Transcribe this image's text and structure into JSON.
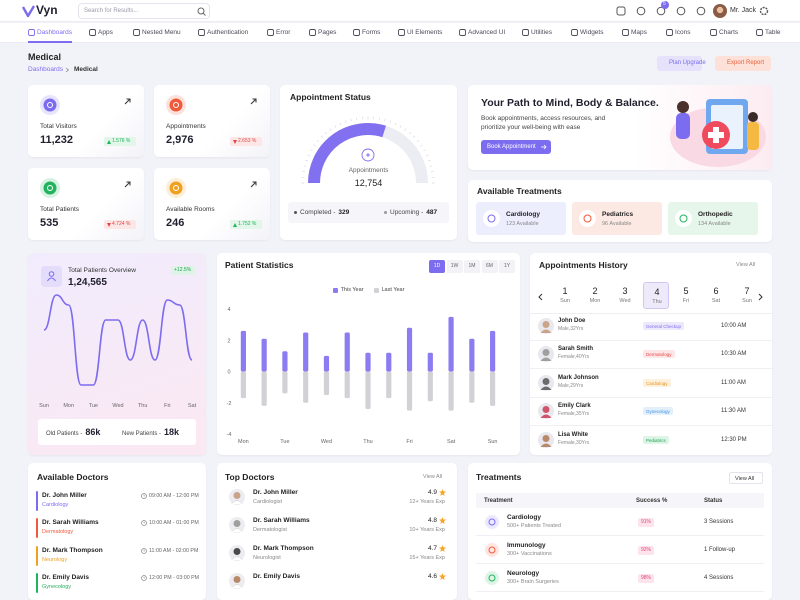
{
  "header": {
    "logo": "Vyn",
    "search_placeholder": "Search for Results...",
    "cart_badge": "5",
    "user": "Mr. Jack"
  },
  "nav": [
    "Dashboards",
    "Apps",
    "Nested Menu",
    "Authentication",
    "Error",
    "Pages",
    "Forms",
    "UI Elements",
    "Advanced UI",
    "Utilities",
    "Widgets",
    "Maps",
    "Icons",
    "Charts",
    "Table"
  ],
  "page": {
    "title": "Medical",
    "breadcrumb": [
      "Dashboards",
      "Medical"
    ],
    "actions": [
      "Plan Upgrade",
      "Export Report"
    ]
  },
  "stats": [
    {
      "label": "Total Visitors",
      "value": "11,232",
      "change": "1.576 %"
    },
    {
      "label": "Appointments",
      "value": "2,976",
      "change": "2.653 %"
    },
    {
      "label": "Total Patients",
      "value": "535",
      "change": "4.724 %"
    },
    {
      "label": "Available Rooms",
      "value": "246",
      "change": "1.752 %"
    }
  ],
  "appointment_status": {
    "title": "Appointment Status",
    "center_label": "Appointments",
    "center_value": "12,754",
    "legend": [
      {
        "label": "Completed -",
        "value": 329
      },
      {
        "label": "Upcoming -",
        "value": 487
      }
    ]
  },
  "banner": {
    "title": "Your Path to Mind, Body & Balance.",
    "text": "Book appointments, access resources, and prioritize your well-being with ease",
    "button": "Book Appointment"
  },
  "available_treatments": {
    "title": "Available Treatments",
    "items": [
      {
        "name": "Cardiology",
        "count": "123 Available"
      },
      {
        "name": "Pediatrics",
        "count": "96 Available"
      },
      {
        "name": "Orthopedic",
        "count": "134 Available"
      }
    ]
  },
  "chart_data": [
    {
      "type": "line",
      "title": "Total Patients Overview",
      "value": "1,24,565",
      "change": "+12.5%",
      "x": [
        0,
        0.5,
        1,
        1.5,
        2,
        2.5,
        3,
        3.5,
        4,
        4.5,
        5,
        5.5,
        6
      ],
      "values": [
        60,
        95,
        85,
        5,
        5,
        70,
        70,
        30,
        70,
        30,
        90,
        85,
        30
      ],
      "xlim": [
        0,
        6
      ],
      "xticks": [
        {
          "value": 0,
          "label": "Sun"
        },
        {
          "value": 1,
          "label": "Mon"
        },
        {
          "value": 2,
          "label": "Tue"
        },
        {
          "value": 3,
          "label": "Wed"
        },
        {
          "value": 4,
          "label": "Thu"
        },
        {
          "value": 5,
          "label": "Fri"
        },
        {
          "value": 6,
          "label": "Sat"
        }
      ],
      "color": "#7c6cf0",
      "footer": [
        {
          "label": "Old Patients -",
          "value": "86k"
        },
        {
          "label": "New Patients -",
          "value": "18k"
        }
      ]
    },
    {
      "type": "bar",
      "title": "Patient Statistics",
      "periods": [
        "1D",
        "1W",
        "1M",
        "6M",
        "1Y"
      ],
      "categories": [
        "Mon",
        null,
        "Tue",
        null,
        "Wed",
        null,
        "Thu",
        null,
        "Fri",
        null,
        "Sat",
        null,
        "Sun"
      ],
      "series": [
        {
          "name": "This Year",
          "color": "#8b7cf2",
          "values": [
            2.6,
            2.1,
            1.3,
            2.5,
            1.0,
            2.5,
            1.2,
            1.2,
            2.8,
            1.2,
            3.5,
            2.1,
            2.6
          ]
        },
        {
          "name": "Last Year",
          "color": "#d2d2d6",
          "values": [
            -1.7,
            -2.2,
            -1.4,
            -2.0,
            -1.5,
            -1.7,
            -2.4,
            -1.7,
            -2.5,
            -1.9,
            -2.5,
            -2.0,
            -2.2
          ]
        }
      ],
      "ylim": [
        -4,
        4
      ],
      "yticks": [
        -4,
        -2,
        0,
        2,
        4
      ],
      "grid": false,
      "legend": "top"
    }
  ],
  "appointments_history": {
    "title": "Appointments History",
    "view_all": "View All",
    "dates": [
      {
        "day": 1,
        "weekday": "Sun"
      },
      {
        "day": 2,
        "weekday": "Mon"
      },
      {
        "day": 3,
        "weekday": "Wed"
      },
      {
        "day": 4,
        "weekday": "Thu"
      },
      {
        "day": 5,
        "weekday": "Fri"
      },
      {
        "day": 6,
        "weekday": "Sat"
      },
      {
        "day": 7,
        "weekday": "Sun"
      }
    ],
    "rows": [
      {
        "name": "John Doe",
        "info": "Male,32Yrs",
        "tag": "General Checkup",
        "time": "10:00 AM"
      },
      {
        "name": "Sarah Smith",
        "info": "Female,40Yrs",
        "tag": "Dermatology",
        "time": "10:30 AM"
      },
      {
        "name": "Mark Johnson",
        "info": "Male,29Yrs",
        "tag": "Cardiology",
        "time": "11:00 AM"
      },
      {
        "name": "Emily Clark",
        "info": "Female,35Yrs",
        "tag": "Gynecology",
        "time": "11:30 AM"
      },
      {
        "name": "Lisa White",
        "info": "Female,30Yrs",
        "tag": "Pediatrics",
        "time": "12:30 PM"
      }
    ]
  },
  "available_doctors": {
    "title": "Available Doctors",
    "rows": [
      {
        "name": "Dr. John Miller",
        "specialty": "Cardiology",
        "time": "09:00 AM - 12:00 PM"
      },
      {
        "name": "Dr. Sarah Williams",
        "specialty": "Dermatology",
        "time": "10:00 AM - 01:00 PM"
      },
      {
        "name": "Dr. Mark Thompson",
        "specialty": "Neurology",
        "time": "11:00 AM - 02:00 PM"
      },
      {
        "name": "Dr. Emily Davis",
        "specialty": "Gynecology",
        "time": "12:00 PM - 03:00 PM"
      }
    ]
  },
  "top_doctors": {
    "title": "Top Doctors",
    "view_all": "View All",
    "rows": [
      {
        "name": "Dr. John Miller",
        "specialty": "Cardiologist",
        "rating": 4.9,
        "experience": "12+ Years Exp"
      },
      {
        "name": "Dr. Sarah Williams",
        "specialty": "Dermatologist",
        "rating": 4.8,
        "experience": "10+ Years Exp"
      },
      {
        "name": "Dr. Mark Thompson",
        "specialty": "Neurologist",
        "rating": 4.7,
        "experience": "15+ Years Exp"
      },
      {
        "name": "Dr. Emily Davis",
        "rating": 4.6
      }
    ]
  },
  "treatments": {
    "title": "Treatments",
    "view_all": "View All",
    "columns": [
      "Treatment",
      "Success %",
      "Status"
    ],
    "rows": [
      {
        "name": "Cardiology",
        "detail": "500+ Patients Treated",
        "success": "91%",
        "status": "3 Sessions"
      },
      {
        "name": "Immunology",
        "detail": "300+ Vaccinations",
        "success": "92%",
        "status": "1 Follow-up"
      },
      {
        "name": "Neurology",
        "detail": "300+ Brain Surgeries",
        "success": "98%",
        "status": "4 Sessions"
      }
    ]
  }
}
